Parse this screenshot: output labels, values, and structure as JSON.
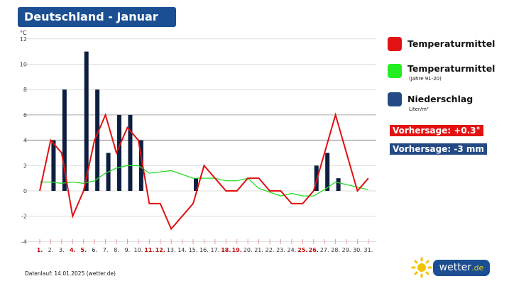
{
  "title": "Deutschland - Januar",
  "chart_data": {
    "type": "bar+line",
    "title": "Deutschland - Januar",
    "ylabel": "°C",
    "ylim": [
      -4,
      12
    ],
    "yticks": [
      -4,
      -2,
      0,
      2,
      4,
      6,
      8,
      10,
      12
    ],
    "grid": true,
    "legend_placement": "right",
    "categories": [
      "1.",
      "2.",
      "3.",
      "4.",
      "5.",
      "6.",
      "7.",
      "8.",
      "9.",
      "10.",
      "11.",
      "12.",
      "13.",
      "14.",
      "15.",
      "16.",
      "17.",
      "18.",
      "19.",
      "20.",
      "21.",
      "22.",
      "23.",
      "24.",
      "25.",
      "26.",
      "27.",
      "28.",
      "29.",
      "30.",
      "31."
    ],
    "highlighted_days": [
      "1.",
      "4.",
      "5.",
      "11.",
      "12.",
      "18.",
      "19.",
      "25.",
      "26."
    ],
    "series": [
      {
        "name": "Niederschlag",
        "unit": "Liter/m²",
        "kind": "bar",
        "color": "#0d1f40",
        "values": [
          0,
          4,
          8,
          0,
          11,
          8,
          3,
          6,
          6,
          4,
          0,
          0,
          0,
          0,
          1,
          0,
          0,
          0,
          0,
          0,
          0,
          0,
          0,
          0,
          0,
          2,
          3,
          1,
          0,
          0,
          0
        ]
      },
      {
        "name": "Temperaturmittel",
        "kind": "line",
        "color": "#e01010",
        "values": [
          0,
          4,
          3,
          -2,
          0,
          4,
          6,
          3,
          5,
          4,
          -1,
          -1,
          -3,
          -2,
          -1,
          2,
          1,
          0,
          0,
          1,
          1,
          0,
          0,
          -1,
          -1,
          0,
          3,
          6,
          3,
          0,
          1
        ]
      },
      {
        "name": "Temperaturmittel (Jahre 91-20)",
        "kind": "line",
        "color": "#22dd22",
        "values": [
          0.7,
          0.7,
          0.6,
          0.7,
          0.6,
          0.8,
          1.4,
          1.8,
          2,
          2,
          1.4,
          1.5,
          1.6,
          1.3,
          1,
          1,
          1,
          0.8,
          0.8,
          1,
          0.2,
          -0.1,
          -0.4,
          -0.2,
          -0.4,
          -0.4,
          0.1,
          0.7,
          0.5,
          0.3,
          0.1
        ]
      }
    ]
  },
  "legend": {
    "temp": {
      "label": "Temperaturmittel",
      "color": "#e31212"
    },
    "temp_avg": {
      "label": "Temperaturmittel",
      "sub": "(Jahre 91-20)",
      "color": "#22ee22"
    },
    "precip": {
      "label": "Niederschlag",
      "sub": "Liter/m²",
      "color": "#234a85"
    }
  },
  "forecast": {
    "temp": {
      "label": "Vorhersage: +0.3°",
      "color": "#e31212"
    },
    "precip": {
      "label": "Vorhersage: -3 mm",
      "color": "#234a85"
    }
  },
  "footer": "Datenlauf: 14.01.2025 (wetter.de)",
  "logo": {
    "text": "wetter",
    "suffix": ".de"
  }
}
